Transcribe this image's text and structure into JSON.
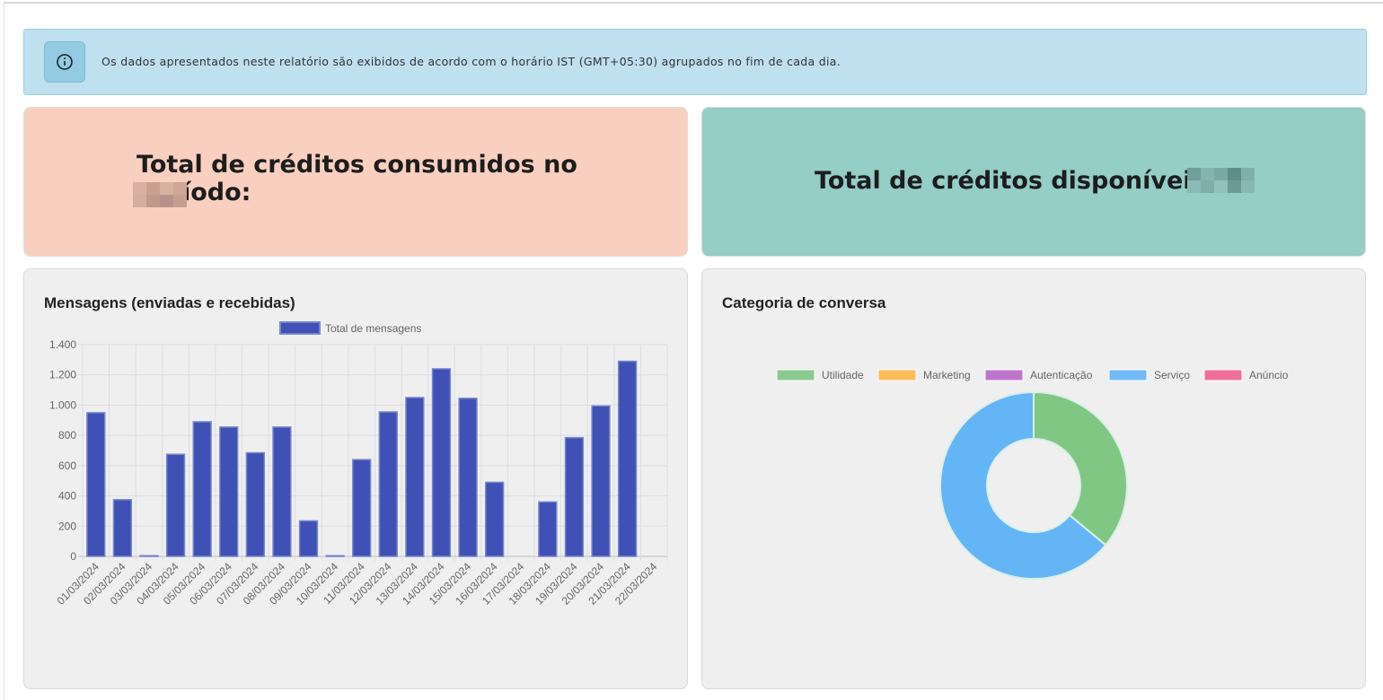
{
  "banner": {
    "text": "Os dados apresentados neste relatório são exibidos de acordo com o horário IST (GMT+05:30) agrupados no fim de cada dia."
  },
  "cards": [
    {
      "title": "Total de créditos consumidos no período:"
    },
    {
      "title": "Total de créditos disponíveis:"
    }
  ],
  "chart_data": [
    {
      "type": "bar",
      "title": "Mensagens (enviadas e recebidas)",
      "categories": [
        "01/03/2024",
        "02/03/2024",
        "03/03/2024",
        "04/03/2024",
        "05/03/2024",
        "06/03/2024",
        "07/03/2024",
        "08/03/2024",
        "09/03/2024",
        "10/03/2024",
        "11/03/2024",
        "12/03/2024",
        "13/03/2024",
        "14/03/2024",
        "15/03/2024",
        "16/03/2024",
        "17/03/2024",
        "18/03/2024",
        "19/03/2024",
        "20/03/2024",
        "21/03/2024",
        "22/03/2024"
      ],
      "series": [
        {
          "name": "Total de mensagens",
          "color": "#3f51b5",
          "values": [
            950,
            375,
            5,
            675,
            890,
            855,
            685,
            855,
            235,
            5,
            640,
            955,
            1050,
            1240,
            1045,
            490,
            0,
            360,
            785,
            995,
            1290,
            0
          ]
        }
      ],
      "ylim": [
        0,
        1400
      ],
      "yticks": [
        0,
        200,
        400,
        600,
        800,
        {
          "value": 1000,
          "label": "1.000"
        },
        {
          "value": 1200,
          "label": "1.200"
        },
        {
          "value": 1400,
          "label": "1.400"
        }
      ],
      "grid": true,
      "legend": "top"
    },
    {
      "type": "doughnut",
      "title": "Categoria de conversa",
      "categories": [
        "Utilidade",
        "Marketing",
        "Autenticação",
        "Serviço",
        "Anúncio"
      ],
      "values": [
        36,
        0,
        0,
        64,
        0
      ],
      "colors": [
        "#81c784",
        "#ffb74d",
        "#ba68c8",
        "#64b5f6",
        "#f06292"
      ],
      "legend": "top"
    }
  ]
}
